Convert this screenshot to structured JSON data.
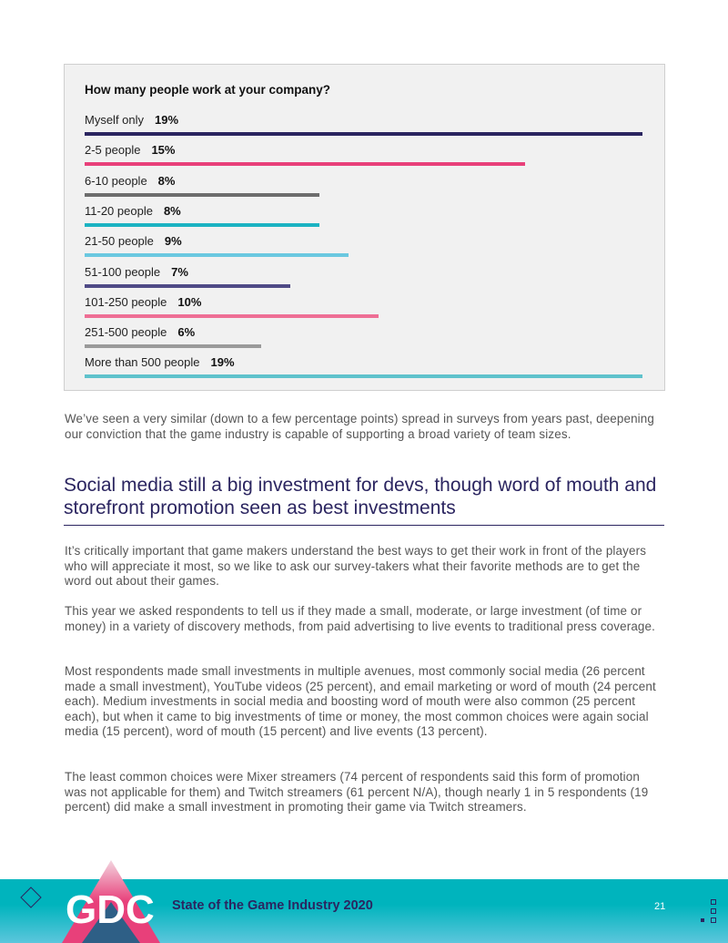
{
  "chart_data": {
    "type": "bar",
    "orientation": "horizontal",
    "title": "How many people work at your company?",
    "categories": [
      "Myself only",
      "2-5 people",
      "6-10 people",
      "11-20 people",
      "21-50 people",
      "51-100 people",
      "101-250 people",
      "251-500 people",
      "More than 500 people"
    ],
    "values": [
      19,
      15,
      8,
      8,
      9,
      7,
      10,
      6,
      19
    ],
    "value_labels": [
      "19%",
      "15%",
      "8%",
      "8%",
      "9%",
      "7%",
      "10%",
      "6%",
      "19%"
    ],
    "colors": [
      "#2b2560",
      "#e8407a",
      "#6d6d6d",
      "#1bb3c2",
      "#6ac8e0",
      "#4f4a86",
      "#ee6f95",
      "#9a9a9a",
      "#5fc2cc"
    ],
    "unit": "%"
  },
  "body": {
    "p1": "We’ve seen a very similar (down to a few percentage points) spread in surveys from years past, deepening our conviction that the game industry is capable of supporting a broad variety of team sizes.",
    "heading": "Social media still a big investment for devs, though word of mouth and storefront promotion seen as best investments",
    "p2": "It’s critically important that game makers understand the best ways to get their work in front of the players who will appreciate it most, so we like to ask our survey-takers what their favorite methods are to get the word out about their games.",
    "p3": "This year we asked respondents to tell us if they made a small, moderate, or large investment (of time or money) in a variety of discovery methods, from paid advertising to live events to traditional press coverage.",
    "p4": "Most respondents made small investments in multiple avenues, most commonly social media (26 percent made a small investment), YouTube videos (25 percent), and email marketing or word of mouth (24 percent each). Medium investments in social media and boosting word of mouth were also common (25 percent each), but when it came to big investments of time or money, the most common choices were again social media (15 percent), word of mouth (15 percent) and live events (13 percent).",
    "p5": "The least common choices were Mixer streamers (74 percent of respondents said this form of promotion was not applicable for them) and Twitch streamers (61 percent N/A), though nearly 1 in 5 respondents (19 percent) did make a small investment in promoting their game via Twitch streamers."
  },
  "footer": {
    "logo_text": "GDC",
    "title": "State of the Game Industry 2020",
    "page": "21"
  }
}
